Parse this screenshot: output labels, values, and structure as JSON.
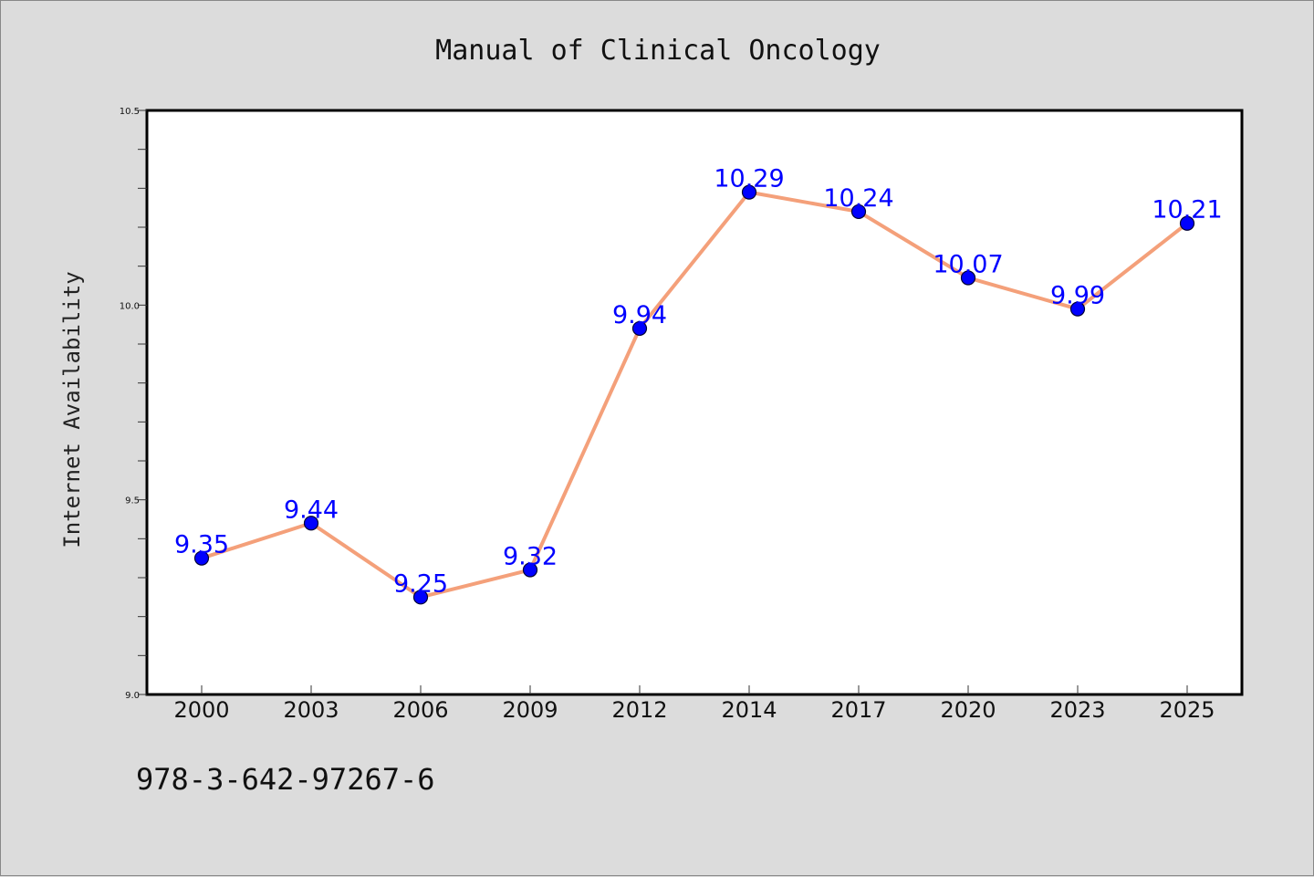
{
  "footer": {
    "isbn": "978-3-642-97267-6"
  },
  "colors": {
    "background": "#dcdcdc",
    "plot_background": "#ffffff",
    "line": "#f4a07a",
    "marker": "#0000ff",
    "data_label": "#0000ff"
  },
  "chart_data": {
    "type": "line",
    "title": "Manual of Clinical Oncology",
    "xlabel": "",
    "ylabel": "Internet Availability",
    "categories": [
      "2000",
      "2003",
      "2006",
      "2009",
      "2012",
      "2014",
      "2017",
      "2020",
      "2023",
      "2025"
    ],
    "series": [
      {
        "values": [
          9.35,
          9.44,
          9.25,
          9.32,
          9.94,
          10.29,
          10.24,
          10.07,
          9.99,
          10.21
        ],
        "labels": [
          "9.35",
          "9.44",
          "9.25",
          "9.32",
          "9.94",
          "10.29",
          "10.24",
          "10.07",
          "9.99",
          "10.21"
        ],
        "marker": "circle"
      }
    ],
    "ylim": [
      9.0,
      10.5
    ],
    "yticks": [
      9.0,
      9.5,
      10.0,
      10.5
    ],
    "ytick_labels": [
      "9.0",
      "9.5",
      "10.0",
      "10.5"
    ],
    "grid": false,
    "legend": "none"
  }
}
